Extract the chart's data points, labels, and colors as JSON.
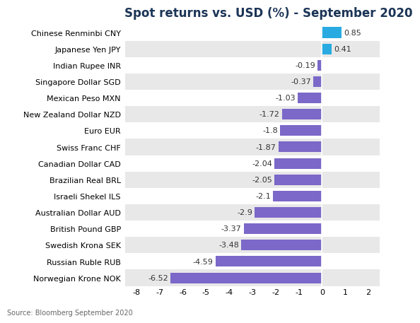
{
  "title": "Spot returns vs. USD (%) - September 2020",
  "categories": [
    "Norwegian Krone NOK",
    "Russian Ruble RUB",
    "Swedish Krona SEK",
    "British Pound GBP",
    "Australian Dollar AUD",
    "Israeli Shekel ILS",
    "Brazilian Real BRL",
    "Canadian Dollar CAD",
    "Swiss Franc CHF",
    "Euro EUR",
    "New Zealand Dollar NZD",
    "Mexican Peso MXN",
    "Singapore Dollar SGD",
    "Indian Rupee INR",
    "Japanese Yen JPY",
    "Chinese Renminbi CNY"
  ],
  "values": [
    -6.52,
    -4.59,
    -3.48,
    -3.37,
    -2.9,
    -2.1,
    -2.05,
    -2.04,
    -1.87,
    -1.8,
    -1.72,
    -1.03,
    -0.37,
    -0.19,
    0.41,
    0.85
  ],
  "bar_color_positive": "#29ABE2",
  "bar_color_negative": "#7B68C8",
  "bg_color_band": "#E8E8E8",
  "bg_color_white": "#FFFFFF",
  "title_fontsize": 12,
  "title_color": "#1C3557",
  "label_fontsize": 8,
  "value_fontsize": 8,
  "source_text": "Source: Bloomberg September 2020",
  "xlim": [
    -8.5,
    2.5
  ],
  "xticks": [
    -8,
    -7,
    -6,
    -5,
    -4,
    -3,
    -2,
    -1,
    0,
    1,
    2
  ]
}
